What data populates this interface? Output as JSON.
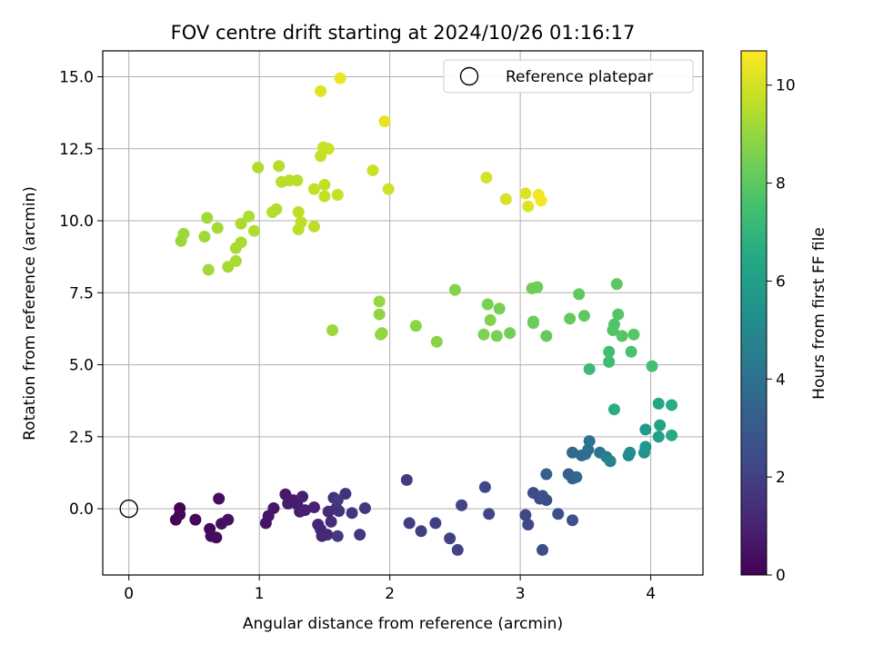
{
  "chart_data": {
    "type": "scatter",
    "title": "FOV centre drift starting at 2024/10/26 01:16:17",
    "xlabel": "Angular distance from reference (arcmin)",
    "ylabel": "Rotation from reference (arcmin)",
    "xlim": [
      -0.2,
      4.4
    ],
    "ylim": [
      -2.3,
      15.9
    ],
    "xticks": [
      0,
      1,
      2,
      3,
      4
    ],
    "xtick_labels": [
      "0",
      "1",
      "2",
      "3",
      "4"
    ],
    "yticks": [
      0.0,
      2.5,
      5.0,
      7.5,
      10.0,
      12.5,
      15.0
    ],
    "ytick_labels": [
      "0.0",
      "2.5",
      "5.0",
      "7.5",
      "10.0",
      "12.5",
      "15.0"
    ],
    "grid": true,
    "legend": {
      "position": "upper right",
      "entries": [
        "Reference platepar"
      ]
    },
    "colorbar": {
      "label": "Hours from first FF file",
      "colormap": "viridis",
      "range": [
        0,
        10.7
      ],
      "ticks": [
        0,
        2,
        4,
        6,
        8,
        10
      ],
      "tick_labels": [
        "0",
        "2",
        "4",
        "6",
        "8",
        "10"
      ]
    },
    "reference_point": {
      "name": "Reference platepar",
      "x": 0,
      "y": 0
    },
    "points": [
      {
        "x": 0.39,
        "y": 0.02,
        "t": 0.05
      },
      {
        "x": 0.36,
        "y": -0.38,
        "t": 0.1
      },
      {
        "x": 0.39,
        "y": -0.2,
        "t": 0.15
      },
      {
        "x": 0.51,
        "y": -0.38,
        "t": 0.2
      },
      {
        "x": 0.62,
        "y": -0.7,
        "t": 0.25
      },
      {
        "x": 0.63,
        "y": -0.95,
        "t": 0.3
      },
      {
        "x": 0.67,
        "y": -1.0,
        "t": 0.35
      },
      {
        "x": 0.69,
        "y": 0.35,
        "t": 0.4
      },
      {
        "x": 0.71,
        "y": -0.52,
        "t": 0.45
      },
      {
        "x": 0.76,
        "y": -0.38,
        "t": 0.5
      },
      {
        "x": 1.05,
        "y": -0.5,
        "t": 0.55
      },
      {
        "x": 1.07,
        "y": -0.25,
        "t": 0.6
      },
      {
        "x": 1.11,
        "y": 0.02,
        "t": 0.65
      },
      {
        "x": 1.2,
        "y": 0.5,
        "t": 0.7
      },
      {
        "x": 1.22,
        "y": 0.18,
        "t": 0.75
      },
      {
        "x": 1.26,
        "y": 0.3,
        "t": 0.8
      },
      {
        "x": 1.29,
        "y": 0.15,
        "t": 0.85
      },
      {
        "x": 1.31,
        "y": -0.1,
        "t": 0.9
      },
      {
        "x": 1.33,
        "y": 0.42,
        "t": 0.95
      },
      {
        "x": 1.35,
        "y": -0.05,
        "t": 1.0
      },
      {
        "x": 1.42,
        "y": 0.05,
        "t": 1.05
      },
      {
        "x": 1.45,
        "y": -0.55,
        "t": 1.1
      },
      {
        "x": 1.47,
        "y": -0.72,
        "t": 1.15
      },
      {
        "x": 1.48,
        "y": -0.95,
        "t": 1.2
      },
      {
        "x": 1.52,
        "y": -0.9,
        "t": 1.25
      },
      {
        "x": 1.53,
        "y": -0.1,
        "t": 1.3
      },
      {
        "x": 1.55,
        "y": -0.45,
        "t": 1.35
      },
      {
        "x": 1.57,
        "y": 0.38,
        "t": 1.4
      },
      {
        "x": 1.59,
        "y": 0.02,
        "t": 1.45
      },
      {
        "x": 1.61,
        "y": -0.08,
        "t": 1.5
      },
      {
        "x": 1.66,
        "y": 0.52,
        "t": 1.55
      },
      {
        "x": 1.71,
        "y": -0.15,
        "t": 1.6
      },
      {
        "x": 1.77,
        "y": -0.9,
        "t": 1.65
      },
      {
        "x": 1.81,
        "y": 0.02,
        "t": 1.7
      },
      {
        "x": 1.6,
        "y": -0.95,
        "t": 1.75
      },
      {
        "x": 1.6,
        "y": 0.3,
        "t": 1.8
      },
      {
        "x": 2.13,
        "y": 1.0,
        "t": 1.85
      },
      {
        "x": 2.15,
        "y": -0.5,
        "t": 1.9
      },
      {
        "x": 2.24,
        "y": -0.78,
        "t": 1.95
      },
      {
        "x": 2.35,
        "y": -0.5,
        "t": 2.0
      },
      {
        "x": 2.46,
        "y": -1.03,
        "t": 2.05
      },
      {
        "x": 2.52,
        "y": -1.43,
        "t": 2.1
      },
      {
        "x": 2.55,
        "y": 0.12,
        "t": 2.15
      },
      {
        "x": 2.73,
        "y": 0.75,
        "t": 2.2
      },
      {
        "x": 2.76,
        "y": -0.18,
        "t": 2.25
      },
      {
        "x": 3.04,
        "y": -0.22,
        "t": 2.3
      },
      {
        "x": 3.06,
        "y": -0.55,
        "t": 2.35
      },
      {
        "x": 3.1,
        "y": 0.55,
        "t": 2.4
      },
      {
        "x": 3.17,
        "y": -1.43,
        "t": 2.45
      },
      {
        "x": 3.15,
        "y": 0.35,
        "t": 2.5
      },
      {
        "x": 3.2,
        "y": 0.3,
        "t": 2.55
      },
      {
        "x": 3.17,
        "y": 0.45,
        "t": 2.6
      },
      {
        "x": 3.29,
        "y": -0.18,
        "t": 2.65
      },
      {
        "x": 3.4,
        "y": -0.4,
        "t": 2.7
      },
      {
        "x": 3.2,
        "y": 1.2,
        "t": 3.2
      },
      {
        "x": 3.37,
        "y": 1.2,
        "t": 3.3
      },
      {
        "x": 3.4,
        "y": 1.05,
        "t": 3.4
      },
      {
        "x": 3.43,
        "y": 1.1,
        "t": 3.5
      },
      {
        "x": 3.4,
        "y": 1.95,
        "t": 3.6
      },
      {
        "x": 3.47,
        "y": 1.85,
        "t": 3.7
      },
      {
        "x": 3.5,
        "y": 1.9,
        "t": 3.8
      },
      {
        "x": 3.52,
        "y": 2.05,
        "t": 3.9
      },
      {
        "x": 3.53,
        "y": 2.35,
        "t": 4.0
      },
      {
        "x": 3.61,
        "y": 1.95,
        "t": 4.2
      },
      {
        "x": 3.66,
        "y": 1.8,
        "t": 4.5
      },
      {
        "x": 3.69,
        "y": 1.65,
        "t": 4.8
      },
      {
        "x": 3.83,
        "y": 1.85,
        "t": 5.0
      },
      {
        "x": 3.84,
        "y": 1.95,
        "t": 5.2
      },
      {
        "x": 3.95,
        "y": 1.95,
        "t": 5.4
      },
      {
        "x": 3.96,
        "y": 2.15,
        "t": 5.6
      },
      {
        "x": 3.96,
        "y": 2.75,
        "t": 5.8
      },
      {
        "x": 4.06,
        "y": 2.5,
        "t": 6.0
      },
      {
        "x": 4.07,
        "y": 2.9,
        "t": 6.2
      },
      {
        "x": 4.06,
        "y": 3.65,
        "t": 6.4
      },
      {
        "x": 4.16,
        "y": 2.55,
        "t": 6.5
      },
      {
        "x": 4.16,
        "y": 3.6,
        "t": 6.6
      },
      {
        "x": 3.72,
        "y": 3.45,
        "t": 6.7
      },
      {
        "x": 3.53,
        "y": 4.85,
        "t": 7.2
      },
      {
        "x": 3.68,
        "y": 5.1,
        "t": 7.3
      },
      {
        "x": 3.68,
        "y": 5.45,
        "t": 7.4
      },
      {
        "x": 4.01,
        "y": 4.95,
        "t": 7.5
      },
      {
        "x": 3.85,
        "y": 5.45,
        "t": 7.6
      },
      {
        "x": 3.72,
        "y": 6.4,
        "t": 7.7
      },
      {
        "x": 3.71,
        "y": 6.2,
        "t": 7.75
      },
      {
        "x": 3.75,
        "y": 6.75,
        "t": 7.8
      },
      {
        "x": 3.78,
        "y": 6.0,
        "t": 7.85
      },
      {
        "x": 3.87,
        "y": 6.05,
        "t": 7.9
      },
      {
        "x": 3.74,
        "y": 7.8,
        "t": 7.95
      },
      {
        "x": 3.49,
        "y": 6.7,
        "t": 8.0
      },
      {
        "x": 3.45,
        "y": 7.45,
        "t": 8.05
      },
      {
        "x": 3.38,
        "y": 6.6,
        "t": 8.1
      },
      {
        "x": 3.2,
        "y": 6.0,
        "t": 8.15
      },
      {
        "x": 3.1,
        "y": 6.5,
        "t": 8.2
      },
      {
        "x": 3.1,
        "y": 6.45,
        "t": 8.25
      },
      {
        "x": 3.13,
        "y": 7.7,
        "t": 8.3
      },
      {
        "x": 3.09,
        "y": 7.65,
        "t": 8.35
      },
      {
        "x": 2.92,
        "y": 6.1,
        "t": 8.4
      },
      {
        "x": 2.84,
        "y": 6.95,
        "t": 8.45
      },
      {
        "x": 2.82,
        "y": 6.0,
        "t": 8.5
      },
      {
        "x": 2.75,
        "y": 7.1,
        "t": 8.55
      },
      {
        "x": 2.72,
        "y": 6.05,
        "t": 8.6
      },
      {
        "x": 2.77,
        "y": 6.55,
        "t": 8.65
      },
      {
        "x": 2.5,
        "y": 7.6,
        "t": 8.7
      },
      {
        "x": 2.36,
        "y": 5.8,
        "t": 8.75
      },
      {
        "x": 2.2,
        "y": 6.35,
        "t": 8.8
      },
      {
        "x": 1.94,
        "y": 6.1,
        "t": 8.85
      },
      {
        "x": 1.92,
        "y": 6.75,
        "t": 8.9
      },
      {
        "x": 1.93,
        "y": 6.05,
        "t": 8.95
      },
      {
        "x": 1.92,
        "y": 7.2,
        "t": 9.0
      },
      {
        "x": 1.56,
        "y": 6.2,
        "t": 9.05
      },
      {
        "x": 0.4,
        "y": 9.3,
        "t": 9.1
      },
      {
        "x": 0.42,
        "y": 9.55,
        "t": 9.12
      },
      {
        "x": 0.58,
        "y": 9.45,
        "t": 9.15
      },
      {
        "x": 0.61,
        "y": 8.3,
        "t": 9.17
      },
      {
        "x": 0.6,
        "y": 10.1,
        "t": 9.2
      },
      {
        "x": 0.68,
        "y": 9.75,
        "t": 9.22
      },
      {
        "x": 0.76,
        "y": 8.4,
        "t": 9.25
      },
      {
        "x": 0.82,
        "y": 8.6,
        "t": 9.27
      },
      {
        "x": 0.82,
        "y": 9.05,
        "t": 9.3
      },
      {
        "x": 0.86,
        "y": 9.25,
        "t": 9.32
      },
      {
        "x": 0.86,
        "y": 9.9,
        "t": 9.35
      },
      {
        "x": 0.92,
        "y": 10.15,
        "t": 9.37
      },
      {
        "x": 0.96,
        "y": 9.65,
        "t": 9.4
      },
      {
        "x": 0.99,
        "y": 11.85,
        "t": 9.42
      },
      {
        "x": 1.1,
        "y": 10.3,
        "t": 9.45
      },
      {
        "x": 1.13,
        "y": 10.4,
        "t": 9.47
      },
      {
        "x": 1.15,
        "y": 11.9,
        "t": 9.5
      },
      {
        "x": 1.17,
        "y": 11.35,
        "t": 9.52
      },
      {
        "x": 1.23,
        "y": 11.4,
        "t": 9.55
      },
      {
        "x": 1.29,
        "y": 11.4,
        "t": 9.57
      },
      {
        "x": 1.3,
        "y": 9.7,
        "t": 9.6
      },
      {
        "x": 1.3,
        "y": 10.3,
        "t": 9.62
      },
      {
        "x": 1.32,
        "y": 9.95,
        "t": 9.65
      },
      {
        "x": 1.42,
        "y": 9.8,
        "t": 9.67
      },
      {
        "x": 1.42,
        "y": 11.1,
        "t": 9.7
      },
      {
        "x": 1.5,
        "y": 11.25,
        "t": 9.72
      },
      {
        "x": 1.5,
        "y": 10.85,
        "t": 9.75
      },
      {
        "x": 1.6,
        "y": 10.9,
        "t": 9.77
      },
      {
        "x": 1.47,
        "y": 12.25,
        "t": 9.8
      },
      {
        "x": 1.49,
        "y": 12.55,
        "t": 9.82
      },
      {
        "x": 1.53,
        "y": 12.5,
        "t": 9.85
      },
      {
        "x": 1.87,
        "y": 11.75,
        "t": 9.87
      },
      {
        "x": 1.99,
        "y": 11.1,
        "t": 9.9
      },
      {
        "x": 1.47,
        "y": 14.5,
        "t": 10.2
      },
      {
        "x": 1.62,
        "y": 14.95,
        "t": 10.4
      },
      {
        "x": 1.96,
        "y": 13.45,
        "t": 10.3
      },
      {
        "x": 2.74,
        "y": 11.5,
        "t": 10.0
      },
      {
        "x": 2.89,
        "y": 10.75,
        "t": 10.05
      },
      {
        "x": 3.04,
        "y": 10.95,
        "t": 10.1
      },
      {
        "x": 3.06,
        "y": 10.5,
        "t": 10.15
      },
      {
        "x": 3.14,
        "y": 10.9,
        "t": 10.5
      },
      {
        "x": 3.16,
        "y": 10.7,
        "t": 10.6
      }
    ]
  }
}
